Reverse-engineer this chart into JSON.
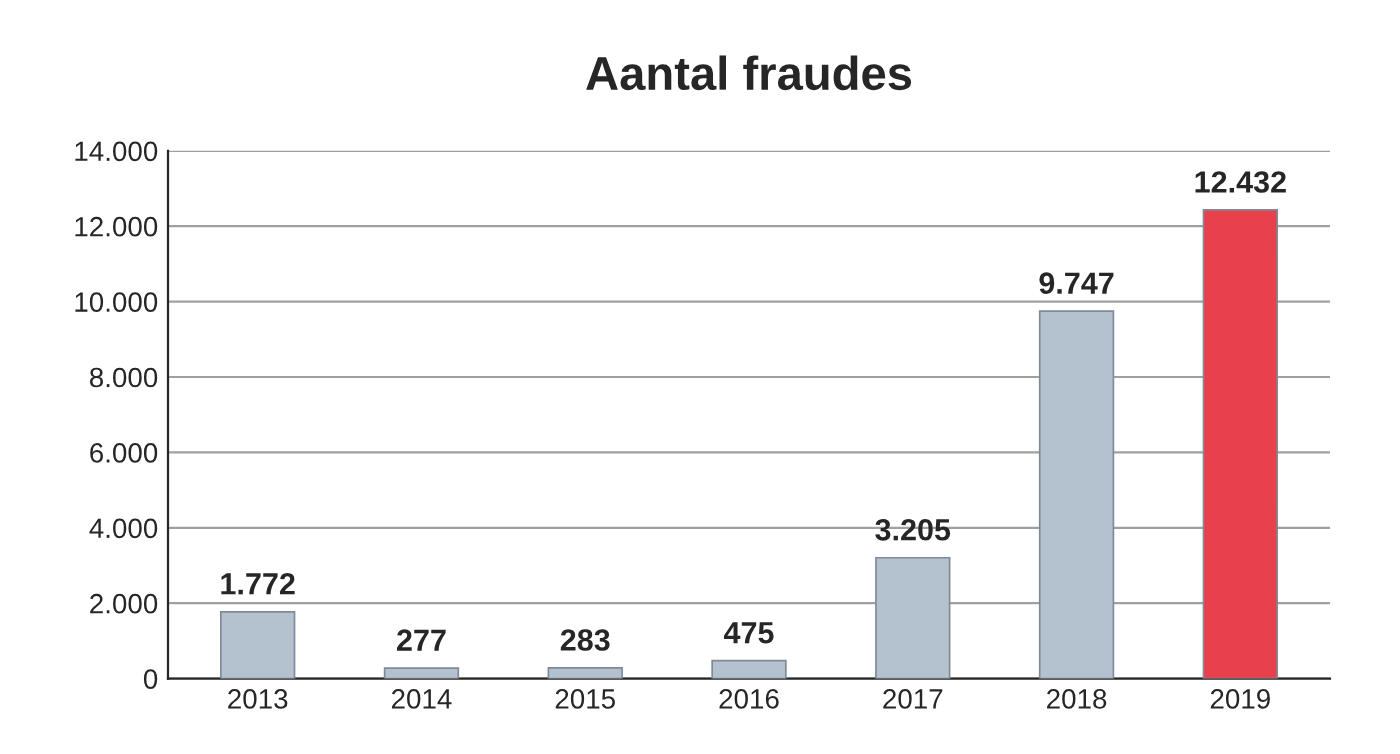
{
  "chart_data": {
    "type": "bar",
    "title": "Aantal fraudes",
    "categories": [
      "2013",
      "2014",
      "2015",
      "2016",
      "2017",
      "2018",
      "2019"
    ],
    "values": [
      1772,
      277,
      283,
      475,
      3205,
      9747,
      12432
    ],
    "colors": [
      "#b4c2d0",
      "#b4c2d0",
      "#b4c2d0",
      "#b4c2d0",
      "#b4c2d0",
      "#b4c2d0",
      "#e8414c"
    ],
    "value_labels": [
      "1.772",
      "277",
      "283",
      "475",
      "3.205",
      "9.747",
      "12.432"
    ],
    "ylim": [
      0,
      14000
    ],
    "yticks": [
      0,
      {
        "value": 2000,
        "label": "2.000"
      },
      {
        "value": 4000,
        "label": "4.000"
      },
      {
        "value": 6000,
        "label": "6.000"
      },
      {
        "value": 8000,
        "label": "8.000"
      },
      {
        "value": 10000,
        "label": "10.000"
      },
      {
        "value": 12000,
        "label": "12.000"
      },
      {
        "value": 14000,
        "label": "14.000"
      }
    ],
    "grid": "y",
    "legend": false
  }
}
